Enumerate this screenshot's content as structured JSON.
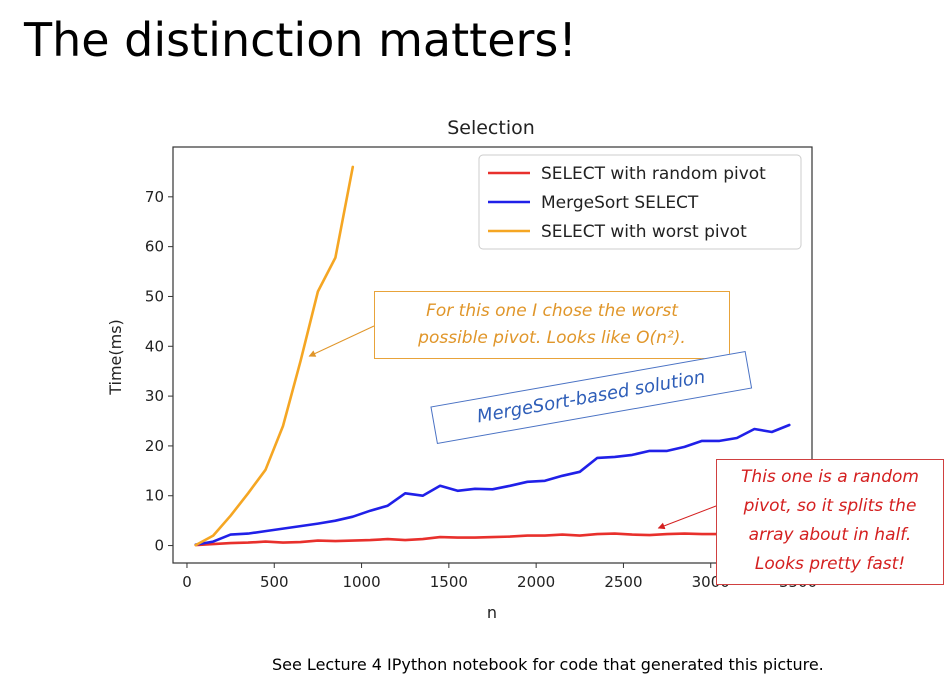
{
  "slide": {
    "title": "The distinction matters!",
    "footer": "See Lecture 4 IPython notebook for code that generated this picture."
  },
  "chart_data": {
    "type": "line",
    "title": "Selection",
    "xlabel": "n",
    "ylabel": "Time(ms)",
    "xlim": [
      -80,
      3580
    ],
    "ylim": [
      -3.5,
      80
    ],
    "xticks": [
      0,
      500,
      1000,
      1500,
      2000,
      2500,
      3000,
      3500
    ],
    "yticks": [
      0,
      10,
      20,
      30,
      40,
      50,
      60,
      70
    ],
    "legend_position": "top-right",
    "grid": false,
    "series": [
      {
        "name": "SELECT with random pivot",
        "color": "#e8302c",
        "x": [
          50,
          150,
          250,
          350,
          450,
          550,
          650,
          750,
          850,
          950,
          1050,
          1150,
          1250,
          1350,
          1450,
          1550,
          1650,
          1750,
          1850,
          1950,
          2050,
          2150,
          2250,
          2350,
          2450,
          2550,
          2650,
          2750,
          2850,
          2950,
          3050,
          3150,
          3250,
          3350,
          3450
        ],
        "y": [
          0.1,
          0.3,
          0.5,
          0.6,
          0.8,
          0.6,
          0.7,
          1.0,
          0.9,
          1.0,
          1.1,
          1.3,
          1.1,
          1.3,
          1.7,
          1.6,
          1.6,
          1.7,
          1.8,
          2.0,
          2.0,
          2.2,
          2.0,
          2.3,
          2.4,
          2.2,
          2.1,
          2.3,
          2.4,
          2.3,
          2.3,
          2.4,
          2.4,
          2.5,
          2.5
        ]
      },
      {
        "name": "MergeSort SELECT",
        "color": "#2020e8",
        "x": [
          50,
          150,
          250,
          350,
          450,
          550,
          650,
          750,
          850,
          950,
          1050,
          1150,
          1250,
          1350,
          1450,
          1550,
          1650,
          1750,
          1850,
          1950,
          2050,
          2150,
          2250,
          2350,
          2450,
          2550,
          2650,
          2750,
          2850,
          2950,
          3050,
          3150,
          3250,
          3350,
          3450
        ],
        "y": [
          0.2,
          0.8,
          2.2,
          2.4,
          2.9,
          3.4,
          3.9,
          4.4,
          5.0,
          5.8,
          7.0,
          8.0,
          10.5,
          10.0,
          12.0,
          11.0,
          11.4,
          11.3,
          12.0,
          12.8,
          13.0,
          14.0,
          14.8,
          17.6,
          17.8,
          18.2,
          19.0,
          19.0,
          19.8,
          21.0,
          21.0,
          21.6,
          23.4,
          22.8,
          24.2
        ]
      },
      {
        "name": "SELECT with worst pivot",
        "color": "#f5a623",
        "x": [
          50,
          150,
          250,
          350,
          450,
          550,
          650,
          750,
          850,
          950
        ],
        "y": [
          0.1,
          2.0,
          6.0,
          10.5,
          15.2,
          24.0,
          37.0,
          51.0,
          57.8,
          76.0
        ]
      }
    ],
    "annotations": [
      {
        "id": "worst",
        "lines": [
          "For this one I chose the worst",
          "possible pivot.  Looks like O(n²)."
        ],
        "color": "#e0962a",
        "target": {
          "x": 700,
          "y": 38
        }
      },
      {
        "id": "mergesort",
        "lines": [
          "MergeSort-based solution"
        ],
        "color": "#2e5eb8"
      },
      {
        "id": "random",
        "lines": [
          "This one is a random",
          "pivot, so it splits the",
          "array about in half.",
          "Looks pretty fast!"
        ],
        "color": "#d42020",
        "target": {
          "x": 2700,
          "y": 3.5
        }
      }
    ]
  }
}
